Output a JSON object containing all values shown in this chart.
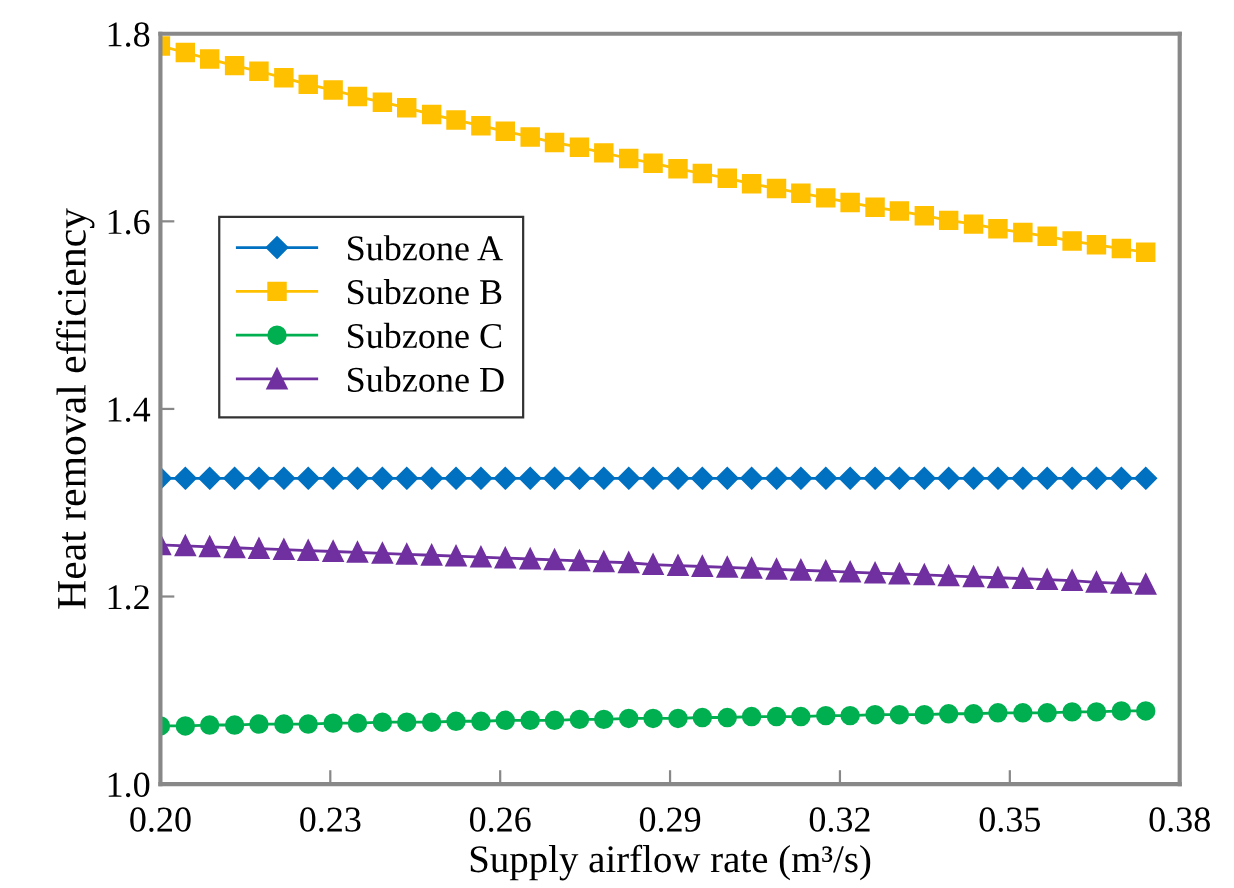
{
  "chart_data": {
    "type": "line",
    "xlabel": "Supply airflow rate (m³/s)",
    "ylabel": "Heat removal efficiency",
    "x": [
      0.2,
      0.2044,
      0.2087,
      0.2131,
      0.2174,
      0.2218,
      0.2261,
      0.2305,
      0.2348,
      0.2392,
      0.2435,
      0.2479,
      0.2522,
      0.2566,
      0.2609,
      0.2653,
      0.2696,
      0.274,
      0.2783,
      0.2827,
      0.287,
      0.2914,
      0.2957,
      0.3001,
      0.3044,
      0.3088,
      0.3131,
      0.3175,
      0.3218,
      0.3262,
      0.3305,
      0.3349,
      0.3392,
      0.3436,
      0.3479,
      0.3523,
      0.3566,
      0.361,
      0.3653,
      0.3697,
      0.374
    ],
    "series": [
      {
        "name": "Subzone A",
        "color": "#0070c0",
        "marker": "diamond",
        "values": [
          1.326,
          1.326,
          1.326,
          1.326,
          1.326,
          1.326,
          1.326,
          1.326,
          1.326,
          1.326,
          1.326,
          1.326,
          1.326,
          1.326,
          1.326,
          1.326,
          1.326,
          1.326,
          1.326,
          1.326,
          1.326,
          1.326,
          1.326,
          1.326,
          1.326,
          1.326,
          1.326,
          1.326,
          1.326,
          1.326,
          1.326,
          1.326,
          1.326,
          1.326,
          1.326,
          1.326,
          1.326,
          1.326,
          1.326,
          1.326,
          1.326
        ]
      },
      {
        "name": "Subzone B",
        "color": "#ffc000",
        "marker": "square",
        "values": [
          1.787,
          1.78,
          1.773,
          1.766,
          1.76,
          1.753,
          1.746,
          1.74,
          1.733,
          1.727,
          1.721,
          1.714,
          1.708,
          1.702,
          1.696,
          1.69,
          1.684,
          1.679,
          1.673,
          1.667,
          1.662,
          1.656,
          1.651,
          1.646,
          1.64,
          1.635,
          1.63,
          1.625,
          1.62,
          1.615,
          1.611,
          1.606,
          1.601,
          1.597,
          1.592,
          1.588,
          1.584,
          1.579,
          1.575,
          1.571,
          1.567
        ]
      },
      {
        "name": "Subzone C",
        "color": "#00b050",
        "marker": "circle",
        "values": [
          1.062,
          1.062,
          1.063,
          1.063,
          1.064,
          1.064,
          1.064,
          1.065,
          1.065,
          1.066,
          1.066,
          1.066,
          1.067,
          1.067,
          1.068,
          1.068,
          1.068,
          1.069,
          1.069,
          1.07,
          1.07,
          1.07,
          1.071,
          1.071,
          1.072,
          1.072,
          1.072,
          1.073,
          1.073,
          1.074,
          1.074,
          1.074,
          1.075,
          1.075,
          1.076,
          1.076,
          1.076,
          1.077,
          1.077,
          1.078,
          1.078
        ]
      },
      {
        "name": "Subzone D",
        "color": "#7030a0",
        "marker": "triangle",
        "values": [
          1.255,
          1.254,
          1.253,
          1.252,
          1.251,
          1.25,
          1.249,
          1.248,
          1.247,
          1.246,
          1.245,
          1.244,
          1.243,
          1.242,
          1.241,
          1.24,
          1.239,
          1.238,
          1.237,
          1.236,
          1.234,
          1.233,
          1.232,
          1.231,
          1.23,
          1.229,
          1.228,
          1.227,
          1.226,
          1.225,
          1.224,
          1.223,
          1.222,
          1.221,
          1.22,
          1.219,
          1.218,
          1.217,
          1.215,
          1.214,
          1.213
        ]
      }
    ],
    "xlim": [
      0.2,
      0.38
    ],
    "xticks": [
      {
        "value": 0.2,
        "label": "0.20"
      },
      {
        "value": 0.23,
        "label": "0.23"
      },
      {
        "value": 0.26,
        "label": "0.26"
      },
      {
        "value": 0.29,
        "label": "0.29"
      },
      {
        "value": 0.32,
        "label": "0.32"
      },
      {
        "value": 0.35,
        "label": "0.35"
      },
      {
        "value": 0.38,
        "label": "0.38"
      }
    ],
    "ylim": [
      1.0,
      1.8
    ],
    "yticks": [
      {
        "value": 1.0,
        "label": "1.0"
      },
      {
        "value": 1.2,
        "label": "1.2"
      },
      {
        "value": 1.4,
        "label": "1.4"
      },
      {
        "value": 1.6,
        "label": "1.6"
      },
      {
        "value": 1.8,
        "label": "1.8"
      }
    ],
    "grid": false,
    "legend": "top left",
    "line_style": "solid"
  }
}
